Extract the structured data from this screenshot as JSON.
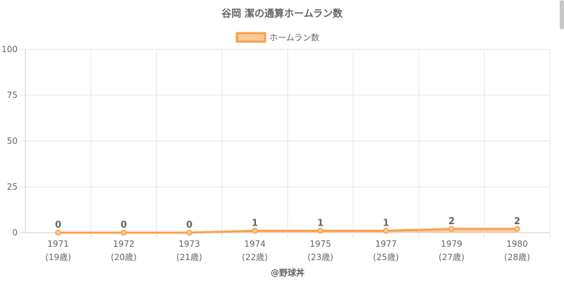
{
  "chart_data": {
    "type": "area",
    "title": "谷岡 潔の通算ホームラン数",
    "categories": [
      "1971",
      "1972",
      "1973",
      "1974",
      "1975",
      "1977",
      "1979",
      "1980"
    ],
    "category_sublabels": [
      "(19歳)",
      "(20歳)",
      "(21歳)",
      "(22歳)",
      "(23歳)",
      "(25歳)",
      "(27歳)",
      "(28歳)"
    ],
    "series": [
      {
        "name": "ホームラン数",
        "values": [
          0,
          0,
          0,
          1,
          1,
          1,
          2,
          2
        ],
        "color": "#f7a04b",
        "fill": "#fbc99a"
      }
    ],
    "data_labels": [
      "0",
      "0",
      "0",
      "1",
      "1",
      "1",
      "2",
      "2"
    ],
    "ylim": [
      0,
      100
    ],
    "yticks": [
      0,
      25,
      50,
      75,
      100
    ],
    "ytick_labels": [
      "0",
      "25",
      "50",
      "75",
      "100"
    ],
    "xlabel": "@野球丼",
    "ylabel": "",
    "grid": true,
    "legend_position": "top-center"
  },
  "colors": {
    "grid": "#e6e6e6",
    "axis": "#cccccc",
    "text": "#666666",
    "title": "#666666"
  }
}
